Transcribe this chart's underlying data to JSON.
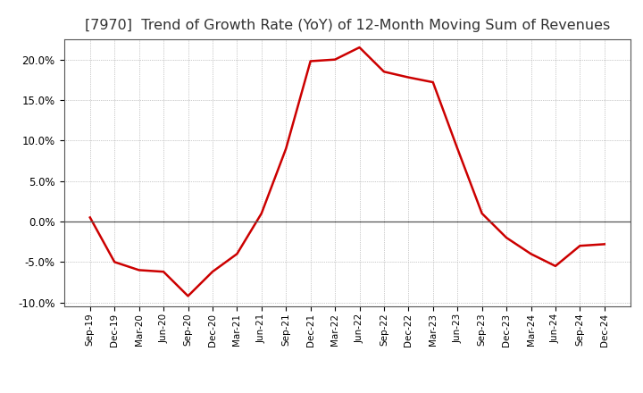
{
  "title": "[7970]  Trend of Growth Rate (YoY) of 12-Month Moving Sum of Revenues",
  "title_fontsize": 11.5,
  "title_fontweight": "normal",
  "line_color": "#cc0000",
  "line_width": 1.8,
  "background_color": "#ffffff",
  "plot_bg_color": "#ffffff",
  "grid_color": "#999999",
  "ylim": [
    -0.105,
    0.225
  ],
  "yticks": [
    -0.1,
    -0.05,
    0.0,
    0.05,
    0.1,
    0.15,
    0.2
  ],
  "x_labels": [
    "Sep-19",
    "Dec-19",
    "Mar-20",
    "Jun-20",
    "Sep-20",
    "Dec-20",
    "Mar-21",
    "Jun-21",
    "Sep-21",
    "Dec-21",
    "Mar-22",
    "Jun-22",
    "Sep-22",
    "Dec-22",
    "Mar-23",
    "Jun-23",
    "Sep-23",
    "Dec-23",
    "Mar-24",
    "Jun-24",
    "Sep-24",
    "Dec-24"
  ],
  "values": [
    0.005,
    -0.05,
    -0.06,
    -0.062,
    -0.092,
    -0.062,
    -0.04,
    0.01,
    0.09,
    0.198,
    0.2,
    0.215,
    0.185,
    0.178,
    0.172,
    0.09,
    0.01,
    -0.02,
    -0.04,
    -0.055,
    -0.03,
    -0.028
  ]
}
